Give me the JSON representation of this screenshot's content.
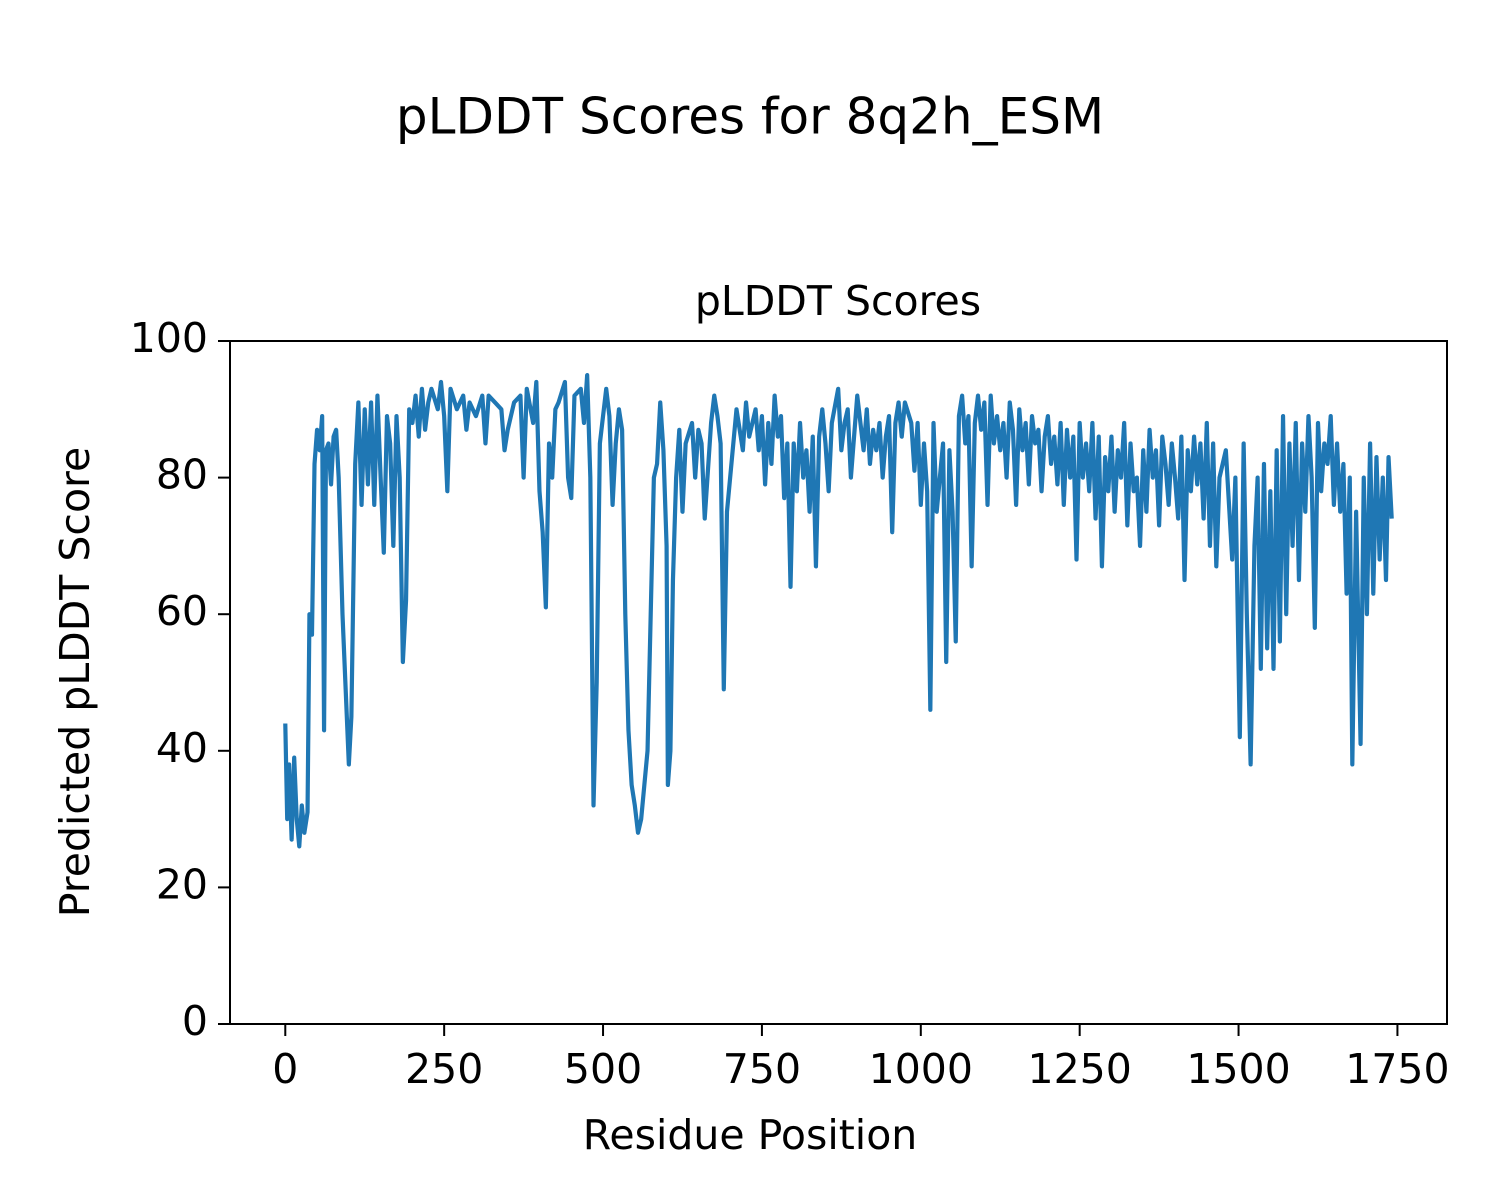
{
  "chart_data": {
    "type": "line",
    "title": "pLDDT Scores for 8q2h_ESM",
    "subtitle": "pLDDT Scores",
    "xlabel": "Residue Position",
    "ylabel": "Predicted pLDDT Score",
    "xlim": [
      -87,
      1828
    ],
    "ylim": [
      0,
      100
    ],
    "xticks": [
      0,
      250,
      500,
      750,
      1000,
      1250,
      1500,
      1750
    ],
    "yticks": [
      0,
      20,
      40,
      60,
      80,
      100
    ],
    "grid": false,
    "x": [
      0,
      3,
      6,
      10,
      14,
      18,
      22,
      26,
      30,
      35,
      38,
      42,
      46,
      50,
      54,
      58,
      61,
      64,
      68,
      72,
      76,
      80,
      84,
      90,
      95,
      100,
      104,
      110,
      115,
      120,
      125,
      130,
      135,
      140,
      145,
      150,
      155,
      160,
      165,
      170,
      175,
      180,
      185,
      190,
      195,
      200,
      205,
      210,
      215,
      220,
      225,
      230,
      240,
      245,
      250,
      255,
      260,
      270,
      280,
      285,
      290,
      300,
      310,
      315,
      320,
      330,
      340,
      345,
      350,
      360,
      370,
      375,
      380,
      390,
      395,
      400,
      405,
      410,
      415,
      420,
      425,
      430,
      440,
      445,
      450,
      455,
      465,
      470,
      475,
      480,
      485,
      490,
      495,
      500,
      505,
      510,
      515,
      520,
      525,
      530,
      535,
      540,
      545,
      550,
      555,
      560,
      565,
      570,
      575,
      580,
      585,
      590,
      595,
      600,
      602,
      606,
      610,
      615,
      620,
      625,
      630,
      640,
      645,
      650,
      655,
      660,
      670,
      675,
      680,
      685,
      690,
      695,
      700,
      705,
      710,
      720,
      725,
      730,
      740,
      745,
      750,
      755,
      760,
      765,
      770,
      775,
      780,
      785,
      790,
      795,
      800,
      805,
      810,
      815,
      820,
      825,
      830,
      835,
      840,
      845,
      850,
      855,
      860,
      870,
      875,
      880,
      885,
      890,
      895,
      900,
      905,
      910,
      915,
      920,
      925,
      930,
      935,
      940,
      945,
      950,
      955,
      960,
      965,
      970,
      975,
      985,
      990,
      995,
      1000,
      1005,
      1010,
      1015,
      1020,
      1025,
      1030,
      1035,
      1040,
      1045,
      1050,
      1055,
      1060,
      1065,
      1070,
      1075,
      1080,
      1085,
      1090,
      1095,
      1100,
      1105,
      1110,
      1115,
      1120,
      1125,
      1130,
      1135,
      1140,
      1145,
      1150,
      1155,
      1160,
      1165,
      1170,
      1175,
      1180,
      1185,
      1190,
      1195,
      1200,
      1205,
      1210,
      1215,
      1220,
      1225,
      1230,
      1235,
      1240,
      1245,
      1250,
      1255,
      1260,
      1265,
      1270,
      1275,
      1280,
      1285,
      1290,
      1295,
      1300,
      1305,
      1310,
      1315,
      1320,
      1325,
      1330,
      1335,
      1340,
      1345,
      1350,
      1355,
      1360,
      1365,
      1370,
      1375,
      1380,
      1385,
      1390,
      1395,
      1400,
      1405,
      1410,
      1415,
      1420,
      1425,
      1430,
      1435,
      1440,
      1445,
      1450,
      1455,
      1460,
      1465,
      1470,
      1480,
      1490,
      1495,
      1502,
      1508,
      1513,
      1519,
      1525,
      1530,
      1535,
      1540,
      1545,
      1550,
      1555,
      1560,
      1565,
      1570,
      1575,
      1580,
      1585,
      1590,
      1595,
      1600,
      1605,
      1610,
      1615,
      1620,
      1625,
      1630,
      1635,
      1640,
      1645,
      1650,
      1655,
      1660,
      1665,
      1670,
      1675,
      1679,
      1685,
      1692,
      1697,
      1702,
      1707,
      1712,
      1717,
      1722,
      1727,
      1732,
      1736,
      1741
    ],
    "series": [
      {
        "name": "pLDDT",
        "color": "#1f77b4",
        "values": [
          44,
          30,
          38,
          27,
          39,
          30,
          26,
          32,
          28,
          31,
          60,
          57,
          82,
          87,
          84,
          89,
          43,
          84,
          85,
          79,
          86,
          87,
          80,
          60,
          49,
          38,
          45,
          82,
          91,
          76,
          90,
          79,
          91,
          76,
          92,
          80,
          69,
          89,
          85,
          70,
          89,
          80,
          53,
          62,
          90,
          88,
          92,
          86,
          93,
          87,
          91,
          93,
          90,
          94,
          89,
          78,
          93,
          90,
          92,
          87,
          91,
          89,
          92,
          85,
          92,
          91,
          90,
          84,
          87,
          91,
          92,
          80,
          93,
          88,
          94,
          78,
          72,
          61,
          85,
          80,
          90,
          91,
          94,
          80,
          77,
          92,
          93,
          88,
          95,
          80,
          32,
          50,
          85,
          89,
          93,
          89,
          76,
          85,
          90,
          87,
          60,
          43,
          35,
          32,
          28,
          30,
          35,
          40,
          60,
          80,
          82,
          91,
          84,
          70,
          35,
          40,
          65,
          80,
          87,
          75,
          85,
          88,
          80,
          87,
          85,
          74,
          88,
          92,
          89,
          85,
          49,
          75,
          80,
          85,
          90,
          84,
          91,
          86,
          90,
          84,
          89,
          79,
          88,
          82,
          92,
          86,
          89,
          77,
          85,
          64,
          85,
          78,
          88,
          80,
          84,
          75,
          86,
          67,
          86,
          90,
          85,
          78,
          88,
          93,
          84,
          88,
          90,
          80,
          86,
          92,
          88,
          84,
          90,
          82,
          87,
          84,
          88,
          80,
          86,
          89,
          72,
          88,
          91,
          86,
          91,
          88,
          81,
          88,
          76,
          85,
          78,
          46,
          88,
          75,
          80,
          85,
          53,
          84,
          75,
          56,
          89,
          92,
          85,
          89,
          67,
          88,
          92,
          87,
          91,
          76,
          92,
          85,
          89,
          84,
          88,
          80,
          91,
          87,
          76,
          90,
          84,
          88,
          79,
          89,
          85,
          87,
          78,
          86,
          89,
          82,
          86,
          79,
          88,
          76,
          87,
          80,
          86,
          68,
          88,
          80,
          85,
          78,
          88,
          74,
          86,
          67,
          83,
          78,
          86,
          75,
          84,
          80,
          88,
          73,
          85,
          78,
          80,
          70,
          84,
          75,
          87,
          80,
          84,
          73,
          86,
          82,
          76,
          85,
          80,
          74,
          86,
          65,
          84,
          78,
          86,
          79,
          85,
          74,
          88,
          70,
          85,
          67,
          80,
          84,
          68,
          80,
          42,
          85,
          60,
          38,
          70,
          80,
          52,
          82,
          55,
          78,
          52,
          84,
          56,
          89,
          60,
          85,
          70,
          88,
          65,
          85,
          75,
          89,
          80,
          58,
          88,
          78,
          85,
          82,
          89,
          76,
          85,
          75,
          82,
          63,
          80,
          38,
          75,
          41,
          80,
          60,
          85,
          63,
          83,
          68,
          80,
          65,
          83,
          74
        ]
      }
    ]
  }
}
